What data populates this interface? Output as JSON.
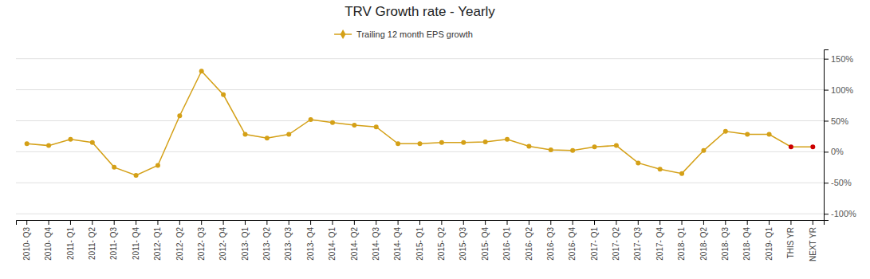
{
  "chart_data": {
    "type": "line",
    "title": "TRV Growth rate - Yearly",
    "categories": [
      "2010- Q3",
      "2010- Q4",
      "2011- Q1",
      "2011- Q2",
      "2011- Q3",
      "2011- Q4",
      "2012- Q1",
      "2012- Q2",
      "2012- Q3",
      "2012- Q4",
      "2013- Q1",
      "2013- Q2",
      "2013- Q3",
      "2013- Q4",
      "2014- Q1",
      "2014- Q2",
      "2014- Q3",
      "2014- Q4",
      "2015- Q1",
      "2015- Q2",
      "2015- Q3",
      "2015- Q4",
      "2016- Q1",
      "2016- Q2",
      "2016- Q3",
      "2016- Q4",
      "2017- Q1",
      "2017- Q2",
      "2017- Q3",
      "2017- Q4",
      "2018- Q1",
      "2018- Q2",
      "2018- Q3",
      "2018- Q4",
      "2019- Q1",
      "THIS YR",
      "NEXT YR"
    ],
    "series": [
      {
        "name": "Trailing 12 month EPS growth",
        "color": "#D4A017",
        "marker": "circle",
        "values": [
          0.13,
          0.1,
          0.2,
          0.15,
          -0.25,
          -0.38,
          -0.22,
          0.58,
          1.3,
          0.92,
          0.28,
          0.22,
          0.28,
          0.52,
          0.47,
          0.43,
          0.4,
          0.13,
          0.13,
          0.15,
          0.15,
          0.16,
          0.2,
          0.09,
          0.03,
          0.02,
          0.08,
          0.1,
          -0.18,
          -0.28,
          -0.35,
          0.02,
          0.33,
          0.28,
          0.28,
          0.08,
          0.08
        ],
        "colors": [
          "#D4A017",
          "#D4A017",
          "#D4A017",
          "#D4A017",
          "#D4A017",
          "#D4A017",
          "#D4A017",
          "#D4A017",
          "#D4A017",
          "#D4A017",
          "#D4A017",
          "#D4A017",
          "#D4A017",
          "#D4A017",
          "#D4A017",
          "#D4A017",
          "#D4A017",
          "#D4A017",
          "#D4A017",
          "#D4A017",
          "#D4A017",
          "#D4A017",
          "#D4A017",
          "#D4A017",
          "#D4A017",
          "#D4A017",
          "#D4A017",
          "#D4A017",
          "#D4A017",
          "#D4A017",
          "#D4A017",
          "#D4A017",
          "#D4A017",
          "#D4A017",
          "#D4A017",
          "#CC0000",
          "#CC0000"
        ]
      }
    ],
    "ylim": [
      -1.1,
      1.65
    ],
    "yticks": [
      {
        "value": -1.0,
        "label": "-100%"
      },
      {
        "value": -0.5,
        "label": "-50%"
      },
      {
        "value": 0.0,
        "label": "0%"
      },
      {
        "value": 0.5,
        "label": "50%"
      },
      {
        "value": 1.0,
        "label": "100%"
      },
      {
        "value": 1.5,
        "label": "150%"
      }
    ],
    "grid": true,
    "legend": "top"
  }
}
